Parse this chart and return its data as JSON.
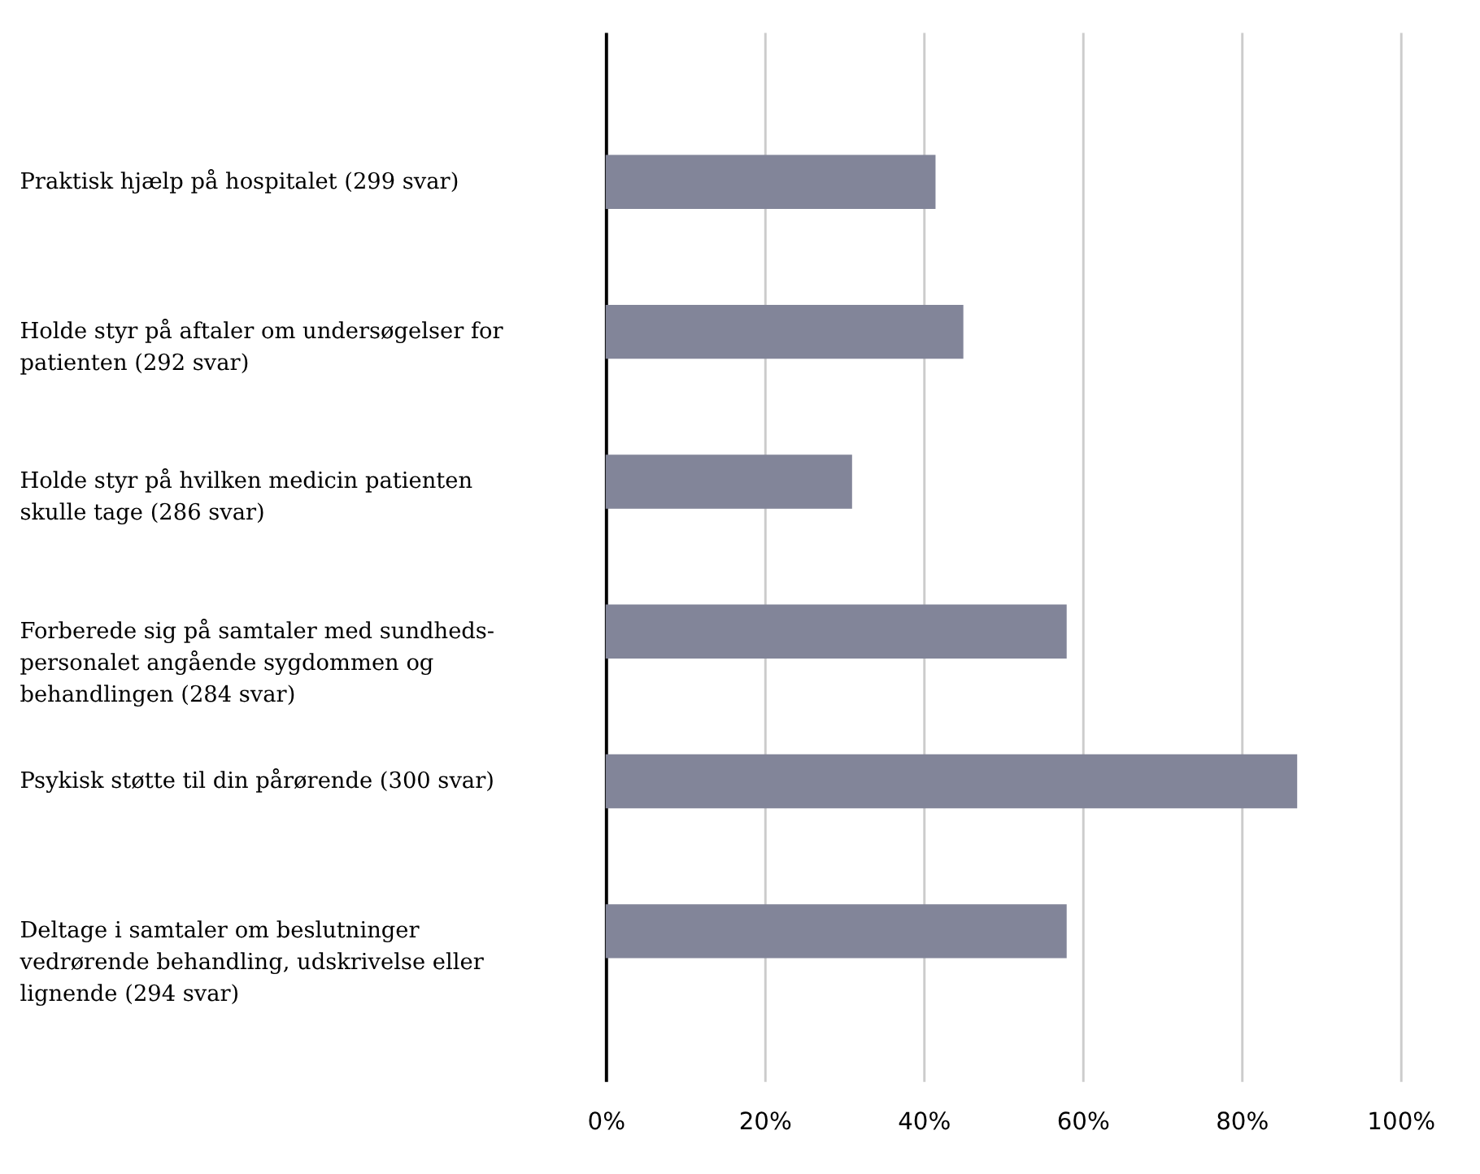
{
  "chart_data": {
    "type": "bar",
    "orientation": "horizontal",
    "categories": [
      "Praktisk hjælp på hospitalet (299 svar)",
      "Holde styr på aftaler om undersøgelser for patienten (292 svar)",
      "Holde styr på hvilken medicin patienten skulle tage (286 svar)",
      "Forberede sig på samtaler med sundheds- personalet angående sygdommen  og behandlingen (284 svar)",
      "Psykisk støtte til din pårørende (300 svar)",
      "Deltage i samtaler om beslutninger vedrørende behandling, udskrivelse eller lignende (294 svar)"
    ],
    "values": [
      41.5,
      45,
      31,
      58,
      87,
      58
    ],
    "color": "#828599",
    "xlim": [
      0,
      100
    ],
    "xticks": [
      {
        "value": 0,
        "label": "0%"
      },
      {
        "value": 20,
        "label": "20%"
      },
      {
        "value": 40,
        "label": "40%"
      },
      {
        "value": 60,
        "label": "60%"
      },
      {
        "value": 80,
        "label": "80%"
      },
      {
        "value": 100,
        "label": "100%"
      }
    ],
    "grid": "x"
  }
}
